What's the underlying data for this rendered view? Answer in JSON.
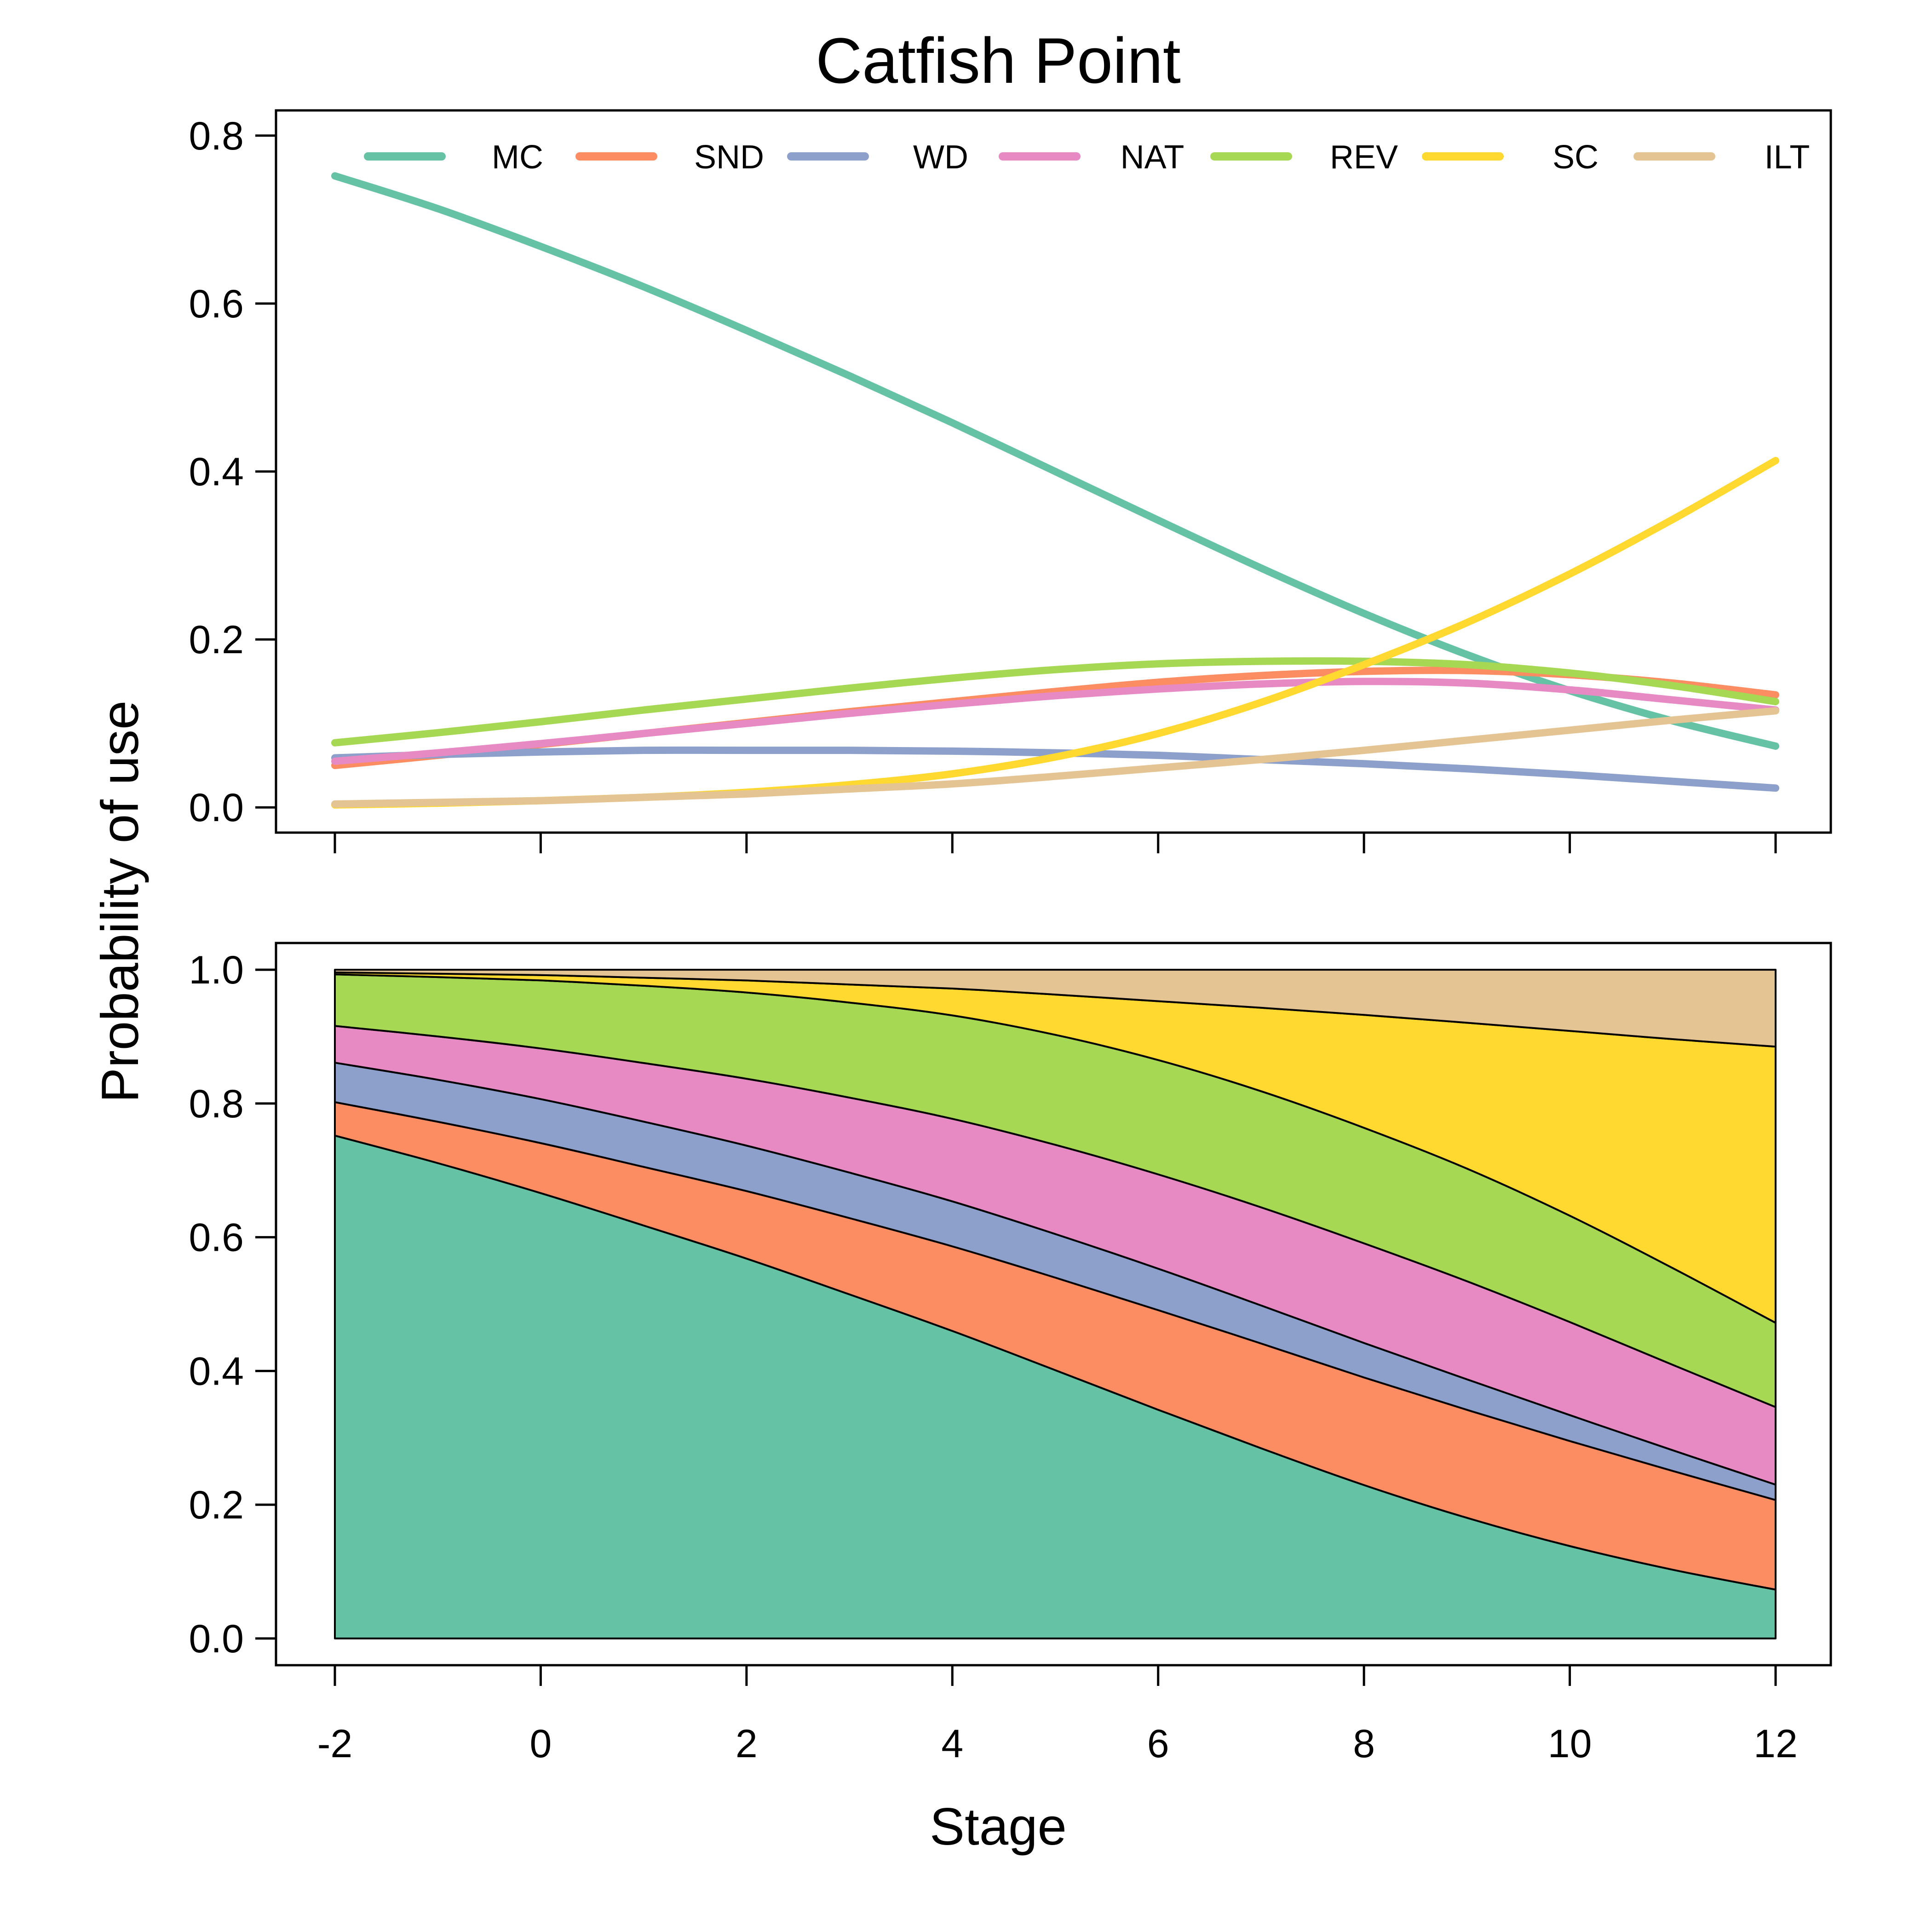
{
  "chart_data": {
    "title": "Catfish Point",
    "ylabel": "Probability of use",
    "xlabel": "Stage",
    "x": [
      -2,
      -1,
      0,
      1,
      2,
      3,
      4,
      5,
      6,
      7,
      8,
      9,
      10,
      11,
      12
    ],
    "xticks": [
      -2,
      0,
      2,
      4,
      6,
      8,
      10,
      12
    ],
    "xtick_labels": [
      "-2",
      "0",
      "2",
      "4",
      "6",
      "8",
      "10",
      "12"
    ],
    "xlim": [
      -2,
      12
    ],
    "series": [
      {
        "name": "MC",
        "color": "#66C2A5",
        "values": [
          0.752,
          0.713,
          0.668,
          0.62,
          0.568,
          0.514,
          0.458,
          0.4,
          0.342,
          0.285,
          0.231,
          0.182,
          0.139,
          0.103,
          0.073
        ]
      },
      {
        "name": "SND",
        "color": "#FC8D62",
        "values": [
          0.05,
          0.062,
          0.075,
          0.088,
          0.101,
          0.114,
          0.126,
          0.138,
          0.149,
          0.157,
          0.162,
          0.163,
          0.158,
          0.148,
          0.134
        ]
      },
      {
        "name": "WD",
        "color": "#8DA0CB",
        "values": [
          0.059,
          0.063,
          0.066,
          0.068,
          0.068,
          0.068,
          0.067,
          0.065,
          0.062,
          0.057,
          0.052,
          0.046,
          0.039,
          0.031,
          0.023
        ]
      },
      {
        "name": "NAT",
        "color": "#E78AC3",
        "values": [
          0.055,
          0.065,
          0.076,
          0.088,
          0.1,
          0.112,
          0.123,
          0.133,
          0.141,
          0.147,
          0.15,
          0.148,
          0.14,
          0.128,
          0.116
        ]
      },
      {
        "name": "REV",
        "color": "#A6D854",
        "values": [
          0.077,
          0.089,
          0.102,
          0.116,
          0.129,
          0.142,
          0.154,
          0.164,
          0.171,
          0.174,
          0.174,
          0.17,
          0.16,
          0.145,
          0.126
        ]
      },
      {
        "name": "SC",
        "color": "#FFD92F",
        "values": [
          0.003,
          0.005,
          0.008,
          0.012,
          0.018,
          0.027,
          0.04,
          0.06,
          0.088,
          0.125,
          0.17,
          0.22,
          0.278,
          0.343,
          0.413
        ]
      },
      {
        "name": "ILT",
        "color": "#E5C494",
        "values": [
          0.004,
          0.006,
          0.008,
          0.012,
          0.016,
          0.022,
          0.028,
          0.037,
          0.047,
          0.057,
          0.068,
          0.08,
          0.092,
          0.104,
          0.115
        ]
      }
    ],
    "panels": [
      {
        "type": "line",
        "ylim": [
          -0.03,
          0.83
        ],
        "yticks": [
          0.0,
          0.2,
          0.4,
          0.6,
          0.8
        ],
        "ytick_labels": [
          "0.0",
          "0.2",
          "0.4",
          "0.6",
          "0.8"
        ],
        "legend": "top, horizontal"
      },
      {
        "type": "area",
        "stacked": true,
        "ylim": [
          -0.04,
          1.04
        ],
        "yticks": [
          0.0,
          0.2,
          0.4,
          0.6,
          0.8,
          1.0
        ],
        "ytick_labels": [
          "0.0",
          "0.2",
          "0.4",
          "0.6",
          "0.8",
          "1.0"
        ]
      }
    ],
    "grid": false
  }
}
